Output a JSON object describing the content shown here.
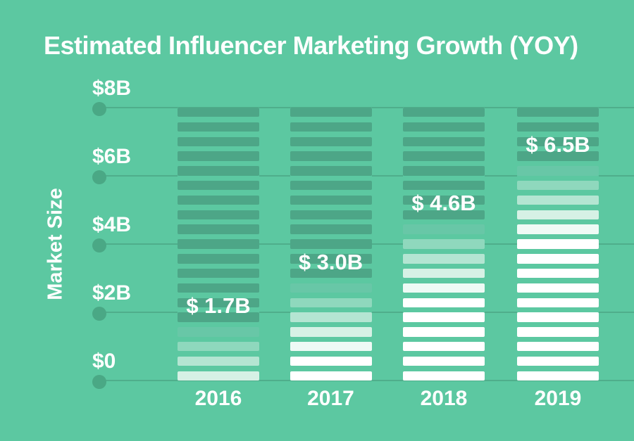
{
  "chart_data": {
    "type": "bar",
    "title": "Estimated Influencer Marketing Growth (YOY)",
    "categories": [
      "2016",
      "2017",
      "2018",
      "2019"
    ],
    "values": [
      1.7,
      3.0,
      4.6,
      6.5
    ],
    "value_labels": [
      "$ 1.7B",
      "$ 3.0B",
      "$ 4.6B",
      "$ 6.5B"
    ],
    "xlabel": "",
    "ylabel": "Market Size",
    "ylim": [
      0,
      8
    ],
    "ytick_values": [
      8,
      6,
      4,
      2,
      0
    ],
    "ytick_labels": [
      "$8B",
      "$6B",
      "$4B",
      "$2B",
      "$0"
    ],
    "grid": true,
    "legend": false,
    "bar_style": "horizontal-stripes, unfilled remainder in dark green above value, fill fades from green to white below value"
  },
  "colors": {
    "background": "#5CC8A1",
    "text": "#FFFFFF",
    "bar_dark": "#4DA687",
    "gridline": "#4FAE8B",
    "axis_dot": "#4AA885",
    "fill_gradient": [
      "#68C7A7",
      "#8FD8BD",
      "#B4E5D2",
      "#D6F1E5",
      "#EEFAF5"
    ],
    "fill_white": "#FFFFFF"
  }
}
